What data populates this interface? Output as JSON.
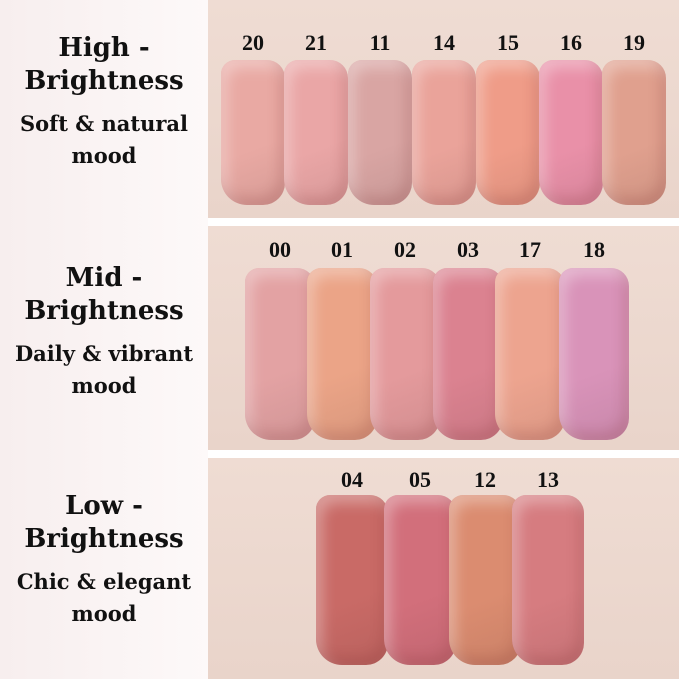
{
  "groups": [
    {
      "title_line1": "High -",
      "title_line2": "Brightness",
      "subtitle_line1": "Soft & natural",
      "subtitle_line2": "mood",
      "shades": [
        {
          "id": "20",
          "color": "#e9a9a3"
        },
        {
          "id": "21",
          "color": "#eaa6a6"
        },
        {
          "id": "11",
          "color": "#d9a5a3"
        },
        {
          "id": "14",
          "color": "#eaa39a"
        },
        {
          "id": "15",
          "color": "#ef9c88"
        },
        {
          "id": "16",
          "color": "#e990a8"
        },
        {
          "id": "19",
          "color": "#e0a08e"
        }
      ]
    },
    {
      "title_line1": "Mid -",
      "title_line2": "Brightness",
      "subtitle_line1": "Daily & vibrant",
      "subtitle_line2": "mood",
      "shades": [
        {
          "id": "00",
          "color": "#e3a2a3"
        },
        {
          "id": "01",
          "color": "#eba487"
        },
        {
          "id": "02",
          "color": "#e49a9c"
        },
        {
          "id": "03",
          "color": "#db8290"
        },
        {
          "id": "17",
          "color": "#eda48f"
        },
        {
          "id": "18",
          "color": "#d993b9"
        }
      ]
    },
    {
      "title_line1": "Low -",
      "title_line2": "Brightness",
      "subtitle_line1": "Chic & elegant",
      "subtitle_line2": "mood",
      "shades": [
        {
          "id": "04",
          "color": "#c96a66"
        },
        {
          "id": "05",
          "color": "#d26f7b"
        },
        {
          "id": "12",
          "color": "#db8c70"
        },
        {
          "id": "13",
          "color": "#d67c80"
        }
      ]
    }
  ]
}
